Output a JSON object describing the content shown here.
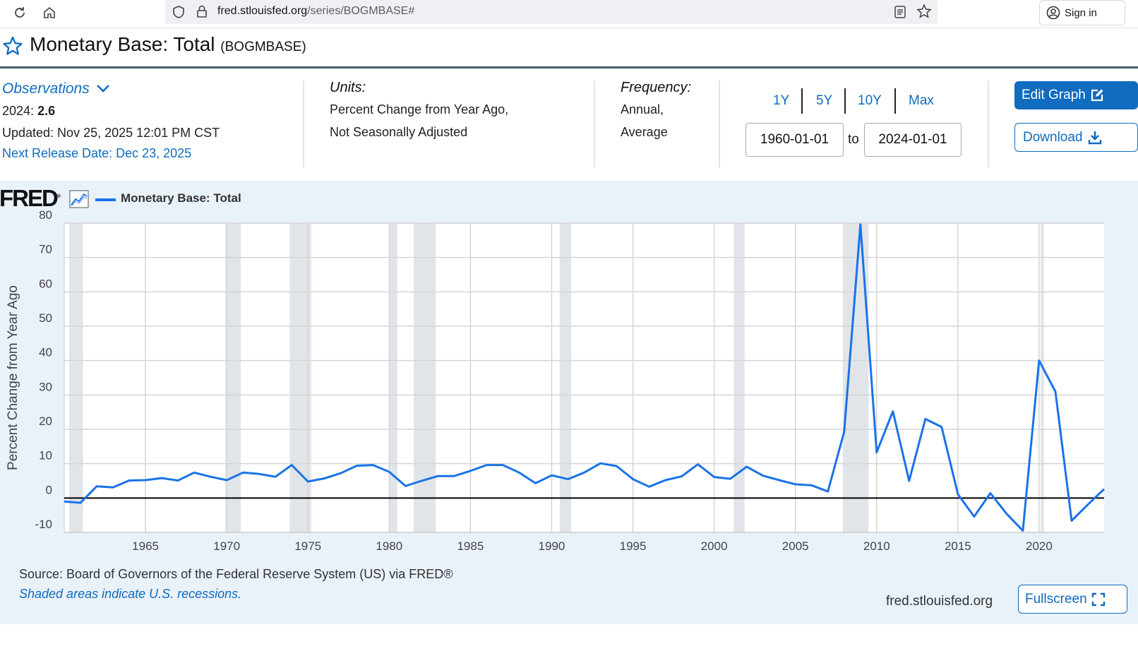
{
  "browser": {
    "url_host": "fred.stlouisfed.org",
    "url_path": "/series/BOGMBASE#",
    "sign_in": "Sign in"
  },
  "page": {
    "title": "Monetary Base: Total",
    "series_id": "(BOGMBASE)"
  },
  "observations": {
    "label": "Observations",
    "latest_date": "2024:",
    "latest_value": "2.6",
    "updated": "Updated: Nov 25, 2025 12:01 PM CST",
    "next_release": "Next Release Date: Dec 23, 2025"
  },
  "units": {
    "label": "Units:",
    "line1": "Percent Change from Year Ago,",
    "line2": "Not Seasonally Adjusted"
  },
  "frequency": {
    "label": "Frequency:",
    "line1": "Annual,",
    "line2": "Average"
  },
  "range": {
    "buttons": [
      "1Y",
      "5Y",
      "10Y",
      "Max"
    ],
    "start": "1960-01-01",
    "to": "to",
    "end": "2024-01-01"
  },
  "actions": {
    "edit_graph": "Edit Graph",
    "download": "Download",
    "fullscreen": "Fullscreen"
  },
  "chart_footer": {
    "logo": "FRED",
    "source": "Source: Board of Governors of the Federal Reserve System (US) via FRED®",
    "shaded_note": "Shaded areas indicate U.S. recessions.",
    "site": "fred.stlouisfed.org"
  },
  "colors": {
    "accent": "#0f6cbf",
    "series": "#1a73e8",
    "recession": "#e1e5e9",
    "panel": "#e9f1f9"
  },
  "chart_data": {
    "type": "line",
    "ylabel": "Percent Change from Year Ago",
    "ylim": [
      -10,
      80
    ],
    "yticks": [
      80,
      70,
      60,
      50,
      40,
      30,
      20,
      10,
      0,
      -10
    ],
    "xticks": [
      1965,
      1970,
      1975,
      1980,
      1985,
      1990,
      1995,
      2000,
      2005,
      2010,
      2015,
      2020
    ],
    "xlim": [
      1960,
      2024
    ],
    "grid": true,
    "legend": "top-left",
    "series": [
      {
        "name": "Monetary Base: Total",
        "x": [
          1960,
          1961,
          1962,
          1963,
          1964,
          1965,
          1966,
          1967,
          1968,
          1969,
          1970,
          1971,
          1972,
          1973,
          1974,
          1975,
          1976,
          1977,
          1978,
          1979,
          1980,
          1981,
          1982,
          1983,
          1984,
          1985,
          1986,
          1987,
          1988,
          1989,
          1990,
          1991,
          1992,
          1993,
          1994,
          1995,
          1996,
          1997,
          1998,
          1999,
          2000,
          2001,
          2002,
          2003,
          2004,
          2005,
          2006,
          2007,
          2008,
          2009,
          2010,
          2011,
          2012,
          2013,
          2014,
          2015,
          2016,
          2017,
          2018,
          2019,
          2020,
          2021,
          2022,
          2023,
          2024
        ],
        "values": [
          -1.0,
          -1.4,
          3.4,
          3.1,
          5.1,
          5.2,
          5.8,
          5.1,
          7.4,
          6.2,
          5.2,
          7.4,
          7.0,
          6.2,
          9.6,
          4.8,
          5.7,
          7.2,
          9.4,
          9.6,
          7.6,
          3.5,
          5.0,
          6.4,
          6.4,
          7.9,
          9.6,
          9.6,
          7.4,
          4.3,
          6.6,
          5.5,
          7.4,
          10.1,
          9.3,
          5.5,
          3.3,
          5.2,
          6.3,
          9.8,
          6.1,
          5.6,
          9.1,
          6.5,
          5.2,
          4.0,
          3.7,
          1.9,
          19.3,
          79.6,
          13.3,
          25.2,
          5.0,
          23.0,
          20.7,
          1.1,
          -5.4,
          1.4,
          -4.6,
          -9.5,
          40.0,
          31.0,
          -6.6,
          -1.9,
          2.6
        ]
      }
    ],
    "recessions": [
      [
        1960.3,
        1961.15
      ],
      [
        1969.92,
        1970.87
      ],
      [
        1973.87,
        1975.2
      ],
      [
        1980.0,
        1980.5
      ],
      [
        1981.5,
        1982.87
      ],
      [
        1990.5,
        1991.2
      ],
      [
        2001.2,
        2001.87
      ],
      [
        2007.92,
        2009.5
      ],
      [
        2020.1,
        2020.3
      ]
    ]
  }
}
